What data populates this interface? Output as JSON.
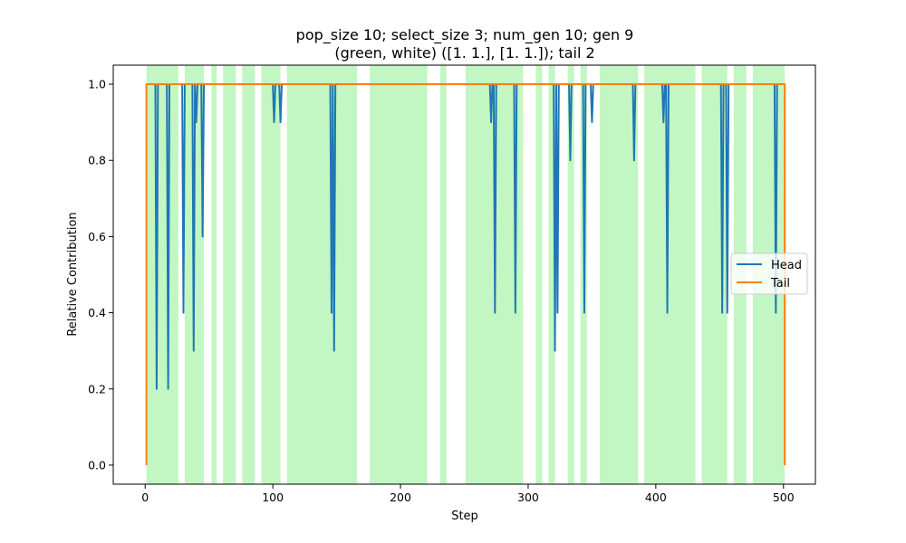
{
  "chart_data": {
    "type": "line",
    "title_lines": [
      "pop_size 10; select_size 3; num_gen 10; gen 9",
      "(green, white) ([1. 1.], [1. 1.]); tail 2"
    ],
    "xlabel": "Step",
    "ylabel": "Relative Contribution",
    "xlim": [
      -25,
      525
    ],
    "ylim": [
      -0.05,
      1.05
    ],
    "x_ticks": [
      0,
      100,
      200,
      300,
      400,
      500
    ],
    "y_ticks": [
      0.0,
      0.2,
      0.4,
      0.6,
      0.8,
      1.0
    ],
    "x_tick_labels": [
      "0",
      "100",
      "200",
      "300",
      "400",
      "500"
    ],
    "y_tick_labels": [
      "0.0",
      "0.2",
      "0.4",
      "0.6",
      "0.8",
      "1.0"
    ],
    "grid": false,
    "legend_position": "center-right",
    "green_span_color": "#90ee90",
    "green_spans": [
      [
        1,
        26
      ],
      [
        31,
        46
      ],
      [
        52,
        56
      ],
      [
        61,
        71
      ],
      [
        76,
        86
      ],
      [
        91,
        106
      ],
      [
        111,
        166
      ],
      [
        176,
        221
      ],
      [
        231,
        236
      ],
      [
        251,
        296
      ],
      [
        306,
        311
      ],
      [
        316,
        321
      ],
      [
        331,
        336
      ],
      [
        341,
        346
      ],
      [
        356,
        386
      ],
      [
        391,
        431
      ],
      [
        436,
        456
      ],
      [
        461,
        471
      ],
      [
        476,
        501
      ]
    ],
    "series": [
      {
        "name": "Head",
        "color": "#1f77b4",
        "points": [
          [
            1,
            1.0
          ],
          [
            8,
            1.0
          ],
          [
            9,
            0.2
          ],
          [
            10,
            1.0
          ],
          [
            17,
            1.0
          ],
          [
            18,
            0.2
          ],
          [
            19,
            1.0
          ],
          [
            29,
            1.0
          ],
          [
            30,
            0.4
          ],
          [
            31,
            1.0
          ],
          [
            37,
            1.0
          ],
          [
            38,
            0.3
          ],
          [
            39,
            1.0
          ],
          [
            40,
            0.9
          ],
          [
            41,
            1.0
          ],
          [
            44,
            1.0
          ],
          [
            45,
            0.6
          ],
          [
            46,
            1.0
          ],
          [
            100,
            1.0
          ],
          [
            101,
            0.9
          ],
          [
            102,
            1.0
          ],
          [
            105,
            1.0
          ],
          [
            106,
            0.9
          ],
          [
            107,
            1.0
          ],
          [
            145,
            1.0
          ],
          [
            146,
            0.4
          ],
          [
            147,
            1.0
          ],
          [
            148,
            0.3
          ],
          [
            149,
            1.0
          ],
          [
            270,
            1.0
          ],
          [
            271,
            0.9
          ],
          [
            272,
            1.0
          ],
          [
            273,
            1.0
          ],
          [
            274,
            0.4
          ],
          [
            275,
            1.0
          ],
          [
            289,
            1.0
          ],
          [
            290,
            0.4
          ],
          [
            291,
            1.0
          ],
          [
            320,
            1.0
          ],
          [
            321,
            0.3
          ],
          [
            322,
            1.0
          ],
          [
            323,
            0.4
          ],
          [
            324,
            1.0
          ],
          [
            332,
            1.0
          ],
          [
            333,
            0.8
          ],
          [
            334,
            1.0
          ],
          [
            343,
            1.0
          ],
          [
            344,
            0.4
          ],
          [
            345,
            1.0
          ],
          [
            349,
            1.0
          ],
          [
            350,
            0.9
          ],
          [
            351,
            1.0
          ],
          [
            382,
            1.0
          ],
          [
            383,
            0.8
          ],
          [
            384,
            1.0
          ],
          [
            405,
            1.0
          ],
          [
            406,
            0.9
          ],
          [
            407,
            1.0
          ],
          [
            408,
            1.0
          ],
          [
            409,
            0.4
          ],
          [
            410,
            1.0
          ],
          [
            451,
            1.0
          ],
          [
            452,
            0.4
          ],
          [
            453,
            1.0
          ],
          [
            455,
            1.0
          ],
          [
            456,
            0.4
          ],
          [
            457,
            1.0
          ],
          [
            493,
            1.0
          ],
          [
            494,
            0.4
          ],
          [
            495,
            1.0
          ],
          [
            501,
            1.0
          ]
        ]
      },
      {
        "name": "Tail",
        "color": "#ff7f0e",
        "points": [
          [
            1,
            0.0
          ],
          [
            1,
            1.0
          ],
          [
            501,
            1.0
          ],
          [
            501,
            0.0
          ]
        ]
      }
    ]
  }
}
